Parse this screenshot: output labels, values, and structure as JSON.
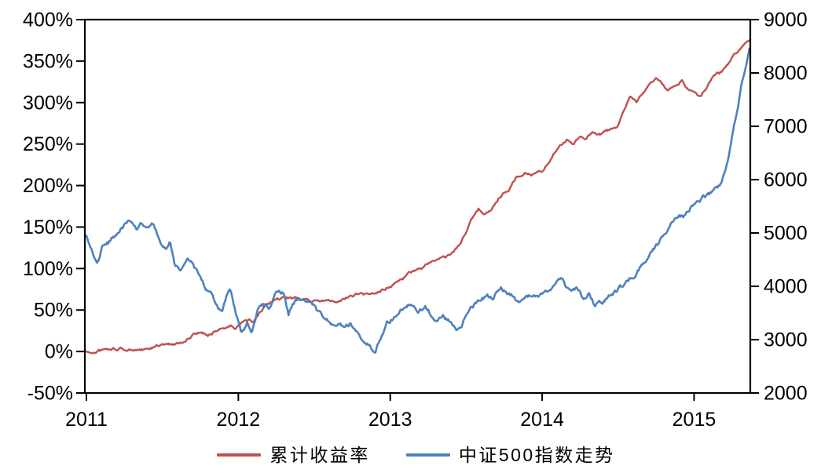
{
  "chart_data": {
    "type": "line",
    "title": "",
    "background": "#ffffff",
    "frame_color": "#000000",
    "grid": "off",
    "legend_position": "bottom-center",
    "x_axis": {
      "range": [
        2011.0,
        2015.37
      ],
      "ticks": [
        {
          "v": 2011,
          "label": "2011"
        },
        {
          "v": 2012,
          "label": "2012"
        },
        {
          "v": 2013,
          "label": "2013"
        },
        {
          "v": 2014,
          "label": "2014"
        },
        {
          "v": 2015,
          "label": "2015"
        }
      ]
    },
    "y_left_axis": {
      "unit": "%",
      "range": [
        -50,
        400
      ],
      "ticks": [
        {
          "v": 400,
          "label": "400%"
        },
        {
          "v": 350,
          "label": "350%"
        },
        {
          "v": 300,
          "label": "300%"
        },
        {
          "v": 250,
          "label": "250%"
        },
        {
          "v": 200,
          "label": "200%"
        },
        {
          "v": 150,
          "label": "150%"
        },
        {
          "v": 100,
          "label": "100%"
        },
        {
          "v": 50,
          "label": "50%"
        },
        {
          "v": 0,
          "label": "0%"
        },
        {
          "v": -50,
          "label": "-50%"
        }
      ]
    },
    "y_right_axis": {
      "range": [
        2000,
        9000
      ],
      "ticks": [
        {
          "v": 9000,
          "label": "9000"
        },
        {
          "v": 8000,
          "label": "8000"
        },
        {
          "v": 7000,
          "label": "7000"
        },
        {
          "v": 6000,
          "label": "6000"
        },
        {
          "v": 5000,
          "label": "5000"
        },
        {
          "v": 4000,
          "label": "4000"
        },
        {
          "v": 3000,
          "label": "3000"
        },
        {
          "v": 2000,
          "label": "2000"
        }
      ]
    },
    "legend": [
      {
        "label": "累计收益率",
        "color": "#c0504d"
      },
      {
        "label": "中证500指数走势",
        "color": "#4f81bd"
      }
    ],
    "series": [
      {
        "name": "累计收益率",
        "axis": "left",
        "color": "#c0504d",
        "stroke_width": 2.4,
        "points": [
          [
            2011.0,
            0
          ],
          [
            2011.03,
            -2
          ],
          [
            2011.08,
            1
          ],
          [
            2011.15,
            2
          ],
          [
            2011.22,
            3
          ],
          [
            2011.28,
            2
          ],
          [
            2011.35,
            3
          ],
          [
            2011.4,
            1
          ],
          [
            2011.45,
            5
          ],
          [
            2011.5,
            8
          ],
          [
            2011.55,
            7
          ],
          [
            2011.6,
            10
          ],
          [
            2011.64,
            13
          ],
          [
            2011.7,
            19
          ],
          [
            2011.75,
            22
          ],
          [
            2011.8,
            20
          ],
          [
            2011.85,
            26
          ],
          [
            2011.9,
            29
          ],
          [
            2011.95,
            31
          ],
          [
            2011.98,
            28
          ],
          [
            2012.05,
            41
          ],
          [
            2012.1,
            37
          ],
          [
            2012.15,
            48
          ],
          [
            2012.2,
            57
          ],
          [
            2012.25,
            62
          ],
          [
            2012.32,
            64
          ],
          [
            2012.4,
            63
          ],
          [
            2012.48,
            61
          ],
          [
            2012.56,
            60
          ],
          [
            2012.64,
            62
          ],
          [
            2012.72,
            65
          ],
          [
            2012.78,
            69
          ],
          [
            2012.83,
            67
          ],
          [
            2012.89,
            69
          ],
          [
            2012.95,
            74
          ],
          [
            2013.02,
            81
          ],
          [
            2013.08,
            88
          ],
          [
            2013.16,
            97
          ],
          [
            2013.25,
            105
          ],
          [
            2013.33,
            111
          ],
          [
            2013.4,
            115
          ],
          [
            2013.46,
            130
          ],
          [
            2013.5,
            145
          ],
          [
            2013.54,
            160
          ],
          [
            2013.58,
            171
          ],
          [
            2013.62,
            167
          ],
          [
            2013.67,
            174
          ],
          [
            2013.71,
            184
          ],
          [
            2013.75,
            192
          ],
          [
            2013.79,
            198
          ],
          [
            2013.83,
            211
          ],
          [
            2013.88,
            217
          ],
          [
            2013.93,
            214
          ],
          [
            2014.0,
            218
          ],
          [
            2014.04,
            230
          ],
          [
            2014.08,
            241
          ],
          [
            2014.12,
            249
          ],
          [
            2014.17,
            256
          ],
          [
            2014.21,
            251
          ],
          [
            2014.25,
            262
          ],
          [
            2014.29,
            258
          ],
          [
            2014.33,
            267
          ],
          [
            2014.38,
            262
          ],
          [
            2014.44,
            266
          ],
          [
            2014.5,
            273
          ],
          [
            2014.54,
            289
          ],
          [
            2014.58,
            306
          ],
          [
            2014.62,
            300
          ],
          [
            2014.67,
            315
          ],
          [
            2014.71,
            323
          ],
          [
            2014.75,
            332
          ],
          [
            2014.79,
            322
          ],
          [
            2014.83,
            314
          ],
          [
            2014.88,
            322
          ],
          [
            2014.92,
            328
          ],
          [
            2014.96,
            318
          ],
          [
            2015.0,
            312
          ],
          [
            2015.04,
            306
          ],
          [
            2015.08,
            317
          ],
          [
            2015.12,
            328
          ],
          [
            2015.17,
            335
          ],
          [
            2015.21,
            342
          ],
          [
            2015.25,
            354
          ],
          [
            2015.29,
            363
          ],
          [
            2015.33,
            371
          ],
          [
            2015.37,
            376
          ]
        ]
      },
      {
        "name": "中证500指数走势",
        "axis": "right",
        "color": "#4f81bd",
        "stroke_width": 2.6,
        "points": [
          [
            2011.0,
            4950
          ],
          [
            2011.03,
            4650
          ],
          [
            2011.07,
            4350
          ],
          [
            2011.1,
            4700
          ],
          [
            2011.15,
            4820
          ],
          [
            2011.2,
            5000
          ],
          [
            2011.25,
            5150
          ],
          [
            2011.29,
            5200
          ],
          [
            2011.33,
            5060
          ],
          [
            2011.36,
            5150
          ],
          [
            2011.4,
            5040
          ],
          [
            2011.44,
            5170
          ],
          [
            2011.48,
            4900
          ],
          [
            2011.52,
            4700
          ],
          [
            2011.55,
            4830
          ],
          [
            2011.58,
            4430
          ],
          [
            2011.62,
            4280
          ],
          [
            2011.66,
            4500
          ],
          [
            2011.7,
            4420
          ],
          [
            2011.74,
            4180
          ],
          [
            2011.78,
            3940
          ],
          [
            2011.82,
            3870
          ],
          [
            2011.86,
            3640
          ],
          [
            2011.89,
            3500
          ],
          [
            2011.92,
            3770
          ],
          [
            2011.95,
            3860
          ],
          [
            2011.98,
            3500
          ],
          [
            2012.02,
            3070
          ],
          [
            2012.06,
            3310
          ],
          [
            2012.09,
            3190
          ],
          [
            2012.13,
            3630
          ],
          [
            2012.17,
            3680
          ],
          [
            2012.2,
            3620
          ],
          [
            2012.25,
            3880
          ],
          [
            2012.3,
            3850
          ],
          [
            2012.33,
            3450
          ],
          [
            2012.36,
            3700
          ],
          [
            2012.41,
            3760
          ],
          [
            2012.46,
            3700
          ],
          [
            2012.5,
            3620
          ],
          [
            2012.54,
            3460
          ],
          [
            2012.58,
            3420
          ],
          [
            2012.62,
            3300
          ],
          [
            2012.66,
            3390
          ],
          [
            2012.7,
            3240
          ],
          [
            2012.74,
            3320
          ],
          [
            2012.78,
            3160
          ],
          [
            2012.82,
            3010
          ],
          [
            2012.86,
            2910
          ],
          [
            2012.9,
            2760
          ],
          [
            2012.94,
            3080
          ],
          [
            2012.98,
            3340
          ],
          [
            2013.03,
            3440
          ],
          [
            2013.07,
            3630
          ],
          [
            2013.11,
            3680
          ],
          [
            2013.15,
            3700
          ],
          [
            2013.19,
            3590
          ],
          [
            2013.23,
            3640
          ],
          [
            2013.27,
            3460
          ],
          [
            2013.31,
            3300
          ],
          [
            2013.35,
            3420
          ],
          [
            2013.4,
            3330
          ],
          [
            2013.44,
            3120
          ],
          [
            2013.48,
            3320
          ],
          [
            2013.52,
            3580
          ],
          [
            2013.56,
            3660
          ],
          [
            2013.6,
            3790
          ],
          [
            2013.64,
            3820
          ],
          [
            2013.68,
            3730
          ],
          [
            2013.73,
            4010
          ],
          [
            2013.77,
            3890
          ],
          [
            2013.81,
            3820
          ],
          [
            2013.85,
            3670
          ],
          [
            2013.89,
            3760
          ],
          [
            2013.94,
            3840
          ],
          [
            2013.98,
            3760
          ],
          [
            2014.02,
            3820
          ],
          [
            2014.06,
            3940
          ],
          [
            2014.1,
            4100
          ],
          [
            2014.13,
            4180
          ],
          [
            2014.16,
            4000
          ],
          [
            2014.19,
            3880
          ],
          [
            2014.23,
            3950
          ],
          [
            2014.27,
            3780
          ],
          [
            2014.31,
            3920
          ],
          [
            2014.34,
            3730
          ],
          [
            2014.38,
            3700
          ],
          [
            2014.42,
            3760
          ],
          [
            2014.47,
            3880
          ],
          [
            2014.54,
            4000
          ],
          [
            2014.58,
            4150
          ],
          [
            2014.62,
            4250
          ],
          [
            2014.66,
            4400
          ],
          [
            2014.7,
            4500
          ],
          [
            2014.74,
            4700
          ],
          [
            2014.78,
            4850
          ],
          [
            2014.82,
            5050
          ],
          [
            2014.86,
            5250
          ],
          [
            2014.9,
            5320
          ],
          [
            2014.94,
            5300
          ],
          [
            2014.98,
            5500
          ],
          [
            2015.02,
            5600
          ],
          [
            2015.06,
            5680
          ],
          [
            2015.1,
            5750
          ],
          [
            2015.14,
            5820
          ],
          [
            2015.17,
            5900
          ],
          [
            2015.2,
            6100
          ],
          [
            2015.23,
            6400
          ],
          [
            2015.26,
            6900
          ],
          [
            2015.29,
            7400
          ],
          [
            2015.32,
            7900
          ],
          [
            2015.35,
            8250
          ],
          [
            2015.365,
            8460
          ]
        ]
      }
    ]
  }
}
